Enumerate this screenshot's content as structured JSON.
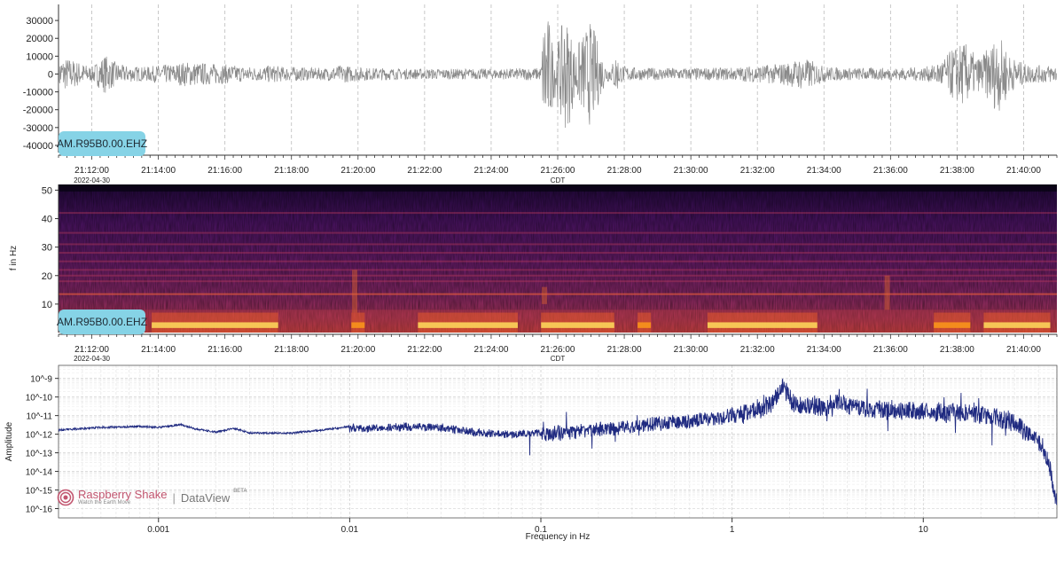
{
  "chart_data": [
    {
      "type": "line",
      "panel": "seismogram",
      "title": "",
      "xlabel": "",
      "ylabel": "",
      "station_label": "AM.R95B0.00.EHZ",
      "y_ticks": [
        "30000",
        "20000",
        "10000",
        "0",
        "-10000",
        "-20000",
        "-30000",
        "-40000"
      ],
      "y_tick_values": [
        30000,
        20000,
        10000,
        0,
        -10000,
        -20000,
        -30000,
        -40000
      ],
      "ylim": [
        -44000,
        39000
      ],
      "x_ticks": [
        "21:12:00",
        "21:14:00",
        "21:16:00",
        "21:18:00",
        "21:20:00",
        "21:22:00",
        "21:24:00",
        "21:26:00",
        "21:28:00",
        "21:30:00",
        "21:32:00",
        "21:34:00",
        "21:36:00",
        "21:38:00",
        "21:40:00"
      ],
      "x_minutes": [
        12,
        14,
        16,
        18,
        20,
        22,
        24,
        26,
        28,
        30,
        32,
        34,
        36,
        38,
        40
      ],
      "xlim_minutes": [
        11.0,
        41.0
      ],
      "date_label": "2022-04-30",
      "tz_label": "CDT",
      "grid": "vertical dashed",
      "color": "#8a8a8a",
      "envelope": {
        "minutes": [
          11.0,
          11.3,
          11.6,
          12.0,
          12.4,
          12.6,
          12.9,
          13.2,
          13.6,
          14.0,
          14.4,
          14.8,
          15.2,
          15.6,
          16.0,
          16.5,
          17.0,
          17.4,
          17.8,
          18.2,
          18.6,
          19.0,
          19.5,
          20.0,
          20.4,
          20.8,
          21.2,
          21.6,
          22.0,
          22.5,
          23.0,
          23.5,
          24.0,
          24.5,
          25.0,
          25.3,
          25.5,
          25.6,
          25.75,
          25.9,
          26.05,
          26.2,
          26.35,
          26.5,
          26.7,
          26.85,
          27.0,
          27.15,
          27.3,
          27.45,
          27.6,
          27.75,
          27.9,
          28.2,
          28.5,
          29.0,
          29.5,
          30.0,
          30.5,
          31.0,
          31.5,
          32.0,
          32.5,
          33.0,
          33.3,
          33.6,
          33.9,
          34.2,
          34.6,
          35.0,
          35.5,
          36.0,
          36.5,
          37.0,
          37.3,
          37.6,
          37.9,
          38.2,
          38.4,
          38.6,
          38.8,
          39.0,
          39.2,
          39.4,
          39.6,
          39.8,
          40.0,
          40.3,
          40.6,
          41.0
        ],
        "amplitude": [
          9000,
          9000,
          7000,
          4000,
          11000,
          8000,
          5000,
          4500,
          4000,
          5000,
          5500,
          7000,
          6500,
          6000,
          5500,
          4500,
          4000,
          5000,
          4000,
          4000,
          3500,
          3500,
          5000,
          4000,
          3500,
          3500,
          3000,
          3000,
          3000,
          3000,
          3000,
          3000,
          3000,
          3000,
          3500,
          3500,
          3500,
          38000,
          30000,
          12000,
          22000,
          33000,
          28000,
          15000,
          20000,
          26000,
          30000,
          22000,
          12000,
          5000,
          4000,
          12000,
          5000,
          4000,
          3500,
          3500,
          3500,
          3500,
          3500,
          3500,
          4000,
          5000,
          5500,
          7000,
          9000,
          8000,
          5000,
          4000,
          3500,
          3500,
          3500,
          3500,
          3500,
          4000,
          5000,
          9000,
          15000,
          18000,
          15000,
          9000,
          12000,
          16000,
          22000,
          18000,
          10000,
          8000,
          6000,
          5000,
          5000,
          5000
        ]
      }
    },
    {
      "type": "heatmap",
      "panel": "spectrogram",
      "title": "",
      "xlabel": "",
      "ylabel": "f in Hz",
      "station_label": "AM.R95B0.00.EHZ",
      "y_ticks": [
        "50",
        "40",
        "30",
        "20",
        "10"
      ],
      "y_tick_values": [
        50,
        40,
        30,
        20,
        10
      ],
      "ylim": [
        0,
        52
      ],
      "x_ticks": [
        "21:12:00",
        "21:14:00",
        "21:16:00",
        "21:18:00",
        "21:20:00",
        "21:22:00",
        "21:24:00",
        "21:26:00",
        "21:28:00",
        "21:30:00",
        "21:32:00",
        "21:34:00",
        "21:36:00",
        "21:38:00",
        "21:40:00"
      ],
      "x_minutes": [
        12,
        14,
        16,
        18,
        20,
        22,
        24,
        26,
        28,
        30,
        32,
        34,
        36,
        38,
        40
      ],
      "xlim_minutes": [
        11.0,
        41.0
      ],
      "date_label": "2022-04-30",
      "tz_label": "CDT",
      "colormap": [
        "#0a0316",
        "#2c0b4d",
        "#5c176e",
        "#8c2a6c",
        "#bf3952",
        "#e5592b",
        "#f8941b",
        "#fcd45a",
        "#fcfbbd"
      ],
      "spectral_lines_hz": [
        13.5,
        18,
        20,
        22,
        25,
        28,
        31,
        35,
        42
      ],
      "hot_segments_minutes": [
        [
          13.8,
          17.6
        ],
        [
          19.8,
          20.2
        ],
        [
          21.8,
          24.8
        ],
        [
          25.5,
          27.7
        ],
        [
          28.4,
          28.8
        ],
        [
          30.5,
          33.8
        ],
        [
          37.3,
          38.4
        ],
        [
          38.8,
          40.8
        ]
      ]
    },
    {
      "type": "line",
      "panel": "spectrum",
      "title": "",
      "xlabel": "Frequency in Hz",
      "ylabel": "Amplitude",
      "xscale": "log",
      "yscale": "log",
      "x_ticks": [
        "0.001",
        "0.01",
        "0.1",
        "1",
        "10"
      ],
      "x_tick_values": [
        0.001,
        0.01,
        0.1,
        1,
        10
      ],
      "xlim": [
        0.0003,
        50
      ],
      "y_ticks": [
        "10^-9",
        "10^-10",
        "10^-11",
        "10^-12",
        "10^-13",
        "10^-14",
        "10^-15",
        "10^-16"
      ],
      "y_tick_exponents": [
        -9,
        -10,
        -11,
        -12,
        -13,
        -14,
        -15,
        -16
      ],
      "ylim_exponents": [
        -16.5,
        -8.3
      ],
      "grid": "log major and minor",
      "color": "#1f2a80",
      "spectrum": {
        "x": [
          0.0003,
          0.0005,
          0.0008,
          0.001,
          0.0013,
          0.0016,
          0.002,
          0.0025,
          0.003,
          0.004,
          0.005,
          0.007,
          0.01,
          0.015,
          0.02,
          0.03,
          0.05,
          0.07,
          0.1,
          0.15,
          0.2,
          0.3,
          0.5,
          0.7,
          1.0,
          1.3,
          1.6,
          1.85,
          2.1,
          2.5,
          3.0,
          3.6,
          4.5,
          6,
          8,
          10,
          15,
          20,
          30,
          40,
          45,
          50
        ],
        "log10_amplitude": [
          -11.75,
          -11.6,
          -11.55,
          -11.6,
          -11.45,
          -11.7,
          -11.85,
          -11.65,
          -11.9,
          -11.9,
          -11.9,
          -11.75,
          -11.55,
          -11.5,
          -11.45,
          -11.5,
          -11.8,
          -11.9,
          -11.75,
          -11.6,
          -11.5,
          -11.3,
          -11.1,
          -10.95,
          -10.7,
          -10.4,
          -9.9,
          -9.2,
          -10.0,
          -10.1,
          -10.2,
          -9.9,
          -10.2,
          -10.3,
          -10.4,
          -10.45,
          -10.5,
          -10.6,
          -11.0,
          -12.0,
          -13.0,
          -15.5
        ]
      },
      "logo": {
        "brand": "Raspberry Shake",
        "tagline": "Watch the Earth Move",
        "separator": "|",
        "product": "DataView",
        "badge": "BETA"
      }
    }
  ]
}
